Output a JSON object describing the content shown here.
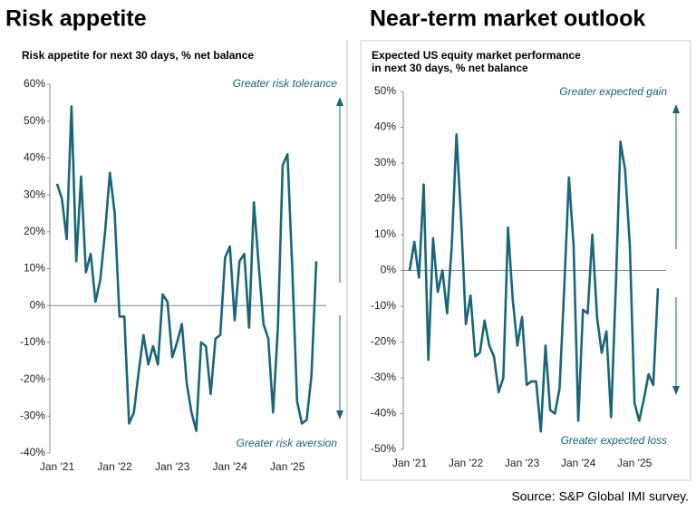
{
  "titles": [
    "Risk appetite",
    "Near-term market outlook"
  ],
  "source": "Source: S&P Global IMI survey.",
  "chart_data": [
    {
      "type": "line",
      "subtitle": [
        "Risk appetite for next 30 days, % net balance"
      ],
      "categories": [
        "Jan '21",
        null,
        null,
        null,
        null,
        null,
        null,
        null,
        null,
        null,
        null,
        null,
        "Jan '22",
        null,
        null,
        null,
        null,
        null,
        null,
        null,
        null,
        null,
        null,
        null,
        "Jan '23",
        null,
        null,
        null,
        null,
        null,
        null,
        null,
        null,
        null,
        null,
        null,
        "Jan '24",
        null,
        null,
        null,
        null,
        null,
        null,
        null,
        null,
        null,
        null,
        null,
        "Jan '25",
        null,
        null,
        null,
        null,
        null,
        null
      ],
      "series": [
        {
          "name": "Risk appetite",
          "color": "#17667a",
          "values": [
            33,
            29,
            18,
            54,
            12,
            35,
            9,
            14,
            1,
            7,
            20,
            36,
            25,
            -3,
            -3,
            -32,
            -29,
            -18,
            -8,
            -16,
            -11,
            -16,
            3,
            1,
            -14,
            -10,
            -5,
            -21,
            -29,
            -34,
            -10,
            -11,
            -24,
            -9,
            -8,
            13,
            16,
            -4,
            12,
            14,
            -6,
            28,
            11,
            -5,
            -9,
            -29,
            -6,
            38,
            41,
            10,
            -26,
            -32,
            -31,
            -19,
            12
          ]
        }
      ],
      "ylim": [
        -40,
        60
      ],
      "yticks": [
        {
          "value": -40,
          "label": "-40%"
        },
        {
          "value": -30,
          "label": "-30%"
        },
        {
          "value": -20,
          "label": "-20%"
        },
        {
          "value": -10,
          "label": "-10%"
        },
        {
          "value": 0,
          "label": "0%"
        },
        {
          "value": 10,
          "label": "10%"
        },
        {
          "value": 20,
          "label": "20%"
        },
        {
          "value": 30,
          "label": "30%"
        },
        {
          "value": 40,
          "label": "40%"
        },
        {
          "value": 50,
          "label": "50%"
        },
        {
          "value": 60,
          "label": "60%"
        }
      ],
      "zero_line": true,
      "annotations": [
        "Greater risk tolerance",
        "Greater risk aversion"
      ]
    },
    {
      "type": "line",
      "subtitle": [
        "Expected US equity market performance",
        "in next 30 days, % net balance"
      ],
      "categories": [
        "Jan '21",
        null,
        null,
        null,
        null,
        null,
        null,
        null,
        null,
        null,
        null,
        null,
        "Jan '22",
        null,
        null,
        null,
        null,
        null,
        null,
        null,
        null,
        null,
        null,
        null,
        "Jan '23",
        null,
        null,
        null,
        null,
        null,
        null,
        null,
        null,
        null,
        null,
        null,
        "Jan '24",
        null,
        null,
        null,
        null,
        null,
        null,
        null,
        null,
        null,
        null,
        null,
        "Jan '25",
        null,
        null,
        null,
        null,
        null
      ],
      "series": [
        {
          "name": "Expected US equity market performance",
          "color": "#17667a",
          "values": [
            0,
            8,
            -2,
            24,
            -25,
            9,
            -6,
            0,
            -12,
            7,
            38,
            14,
            -15,
            -7,
            -24,
            -23,
            -14,
            -21,
            -24,
            -34,
            -30,
            12,
            -8,
            -21,
            -13,
            -32,
            -31,
            -31,
            -45,
            -21,
            -39,
            -40,
            -33,
            -5,
            26,
            7,
            -42,
            -11,
            -12,
            10,
            -13,
            -23,
            -17,
            -41,
            -5,
            36,
            28,
            7,
            -37,
            -42,
            -36,
            -29,
            -32,
            -5
          ]
        }
      ],
      "ylim": [
        -50,
        50
      ],
      "yticks": [
        {
          "value": -50,
          "label": "-50%"
        },
        {
          "value": -40,
          "label": "-40%"
        },
        {
          "value": -30,
          "label": "-30%"
        },
        {
          "value": -20,
          "label": "-20%"
        },
        {
          "value": -10,
          "label": "-10%"
        },
        {
          "value": 0,
          "label": "0%"
        },
        {
          "value": 10,
          "label": "10%"
        },
        {
          "value": 20,
          "label": "20%"
        },
        {
          "value": 30,
          "label": "30%"
        },
        {
          "value": 40,
          "label": "40%"
        },
        {
          "value": 50,
          "label": "50%"
        }
      ],
      "zero_line": true,
      "annotations": [
        "Greater expected gain",
        "Greater  expected loss"
      ]
    }
  ]
}
